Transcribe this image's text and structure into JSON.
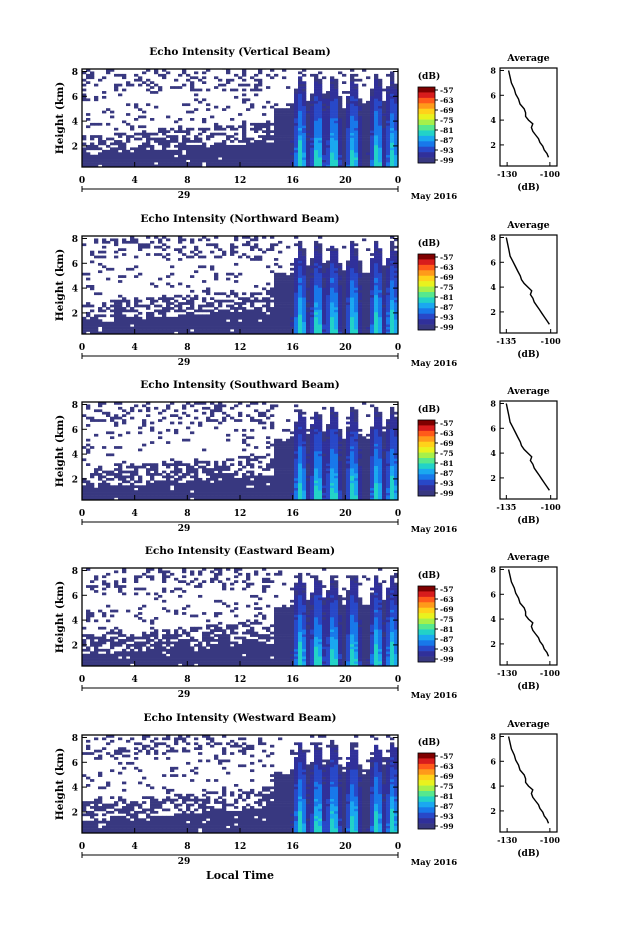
{
  "x_axis_title": "Local Time",
  "colorbar": {
    "unit": "(dB)",
    "labels": [
      "-57",
      "-63",
      "-69",
      "-75",
      "-81",
      "-87",
      "-93",
      "-99"
    ],
    "colors": [
      "#7f0000",
      "#d81c1c",
      "#ff5a1a",
      "#ff9a1a",
      "#ffd21a",
      "#e9f21e",
      "#a6f04a",
      "#56e88e",
      "#22d2c8",
      "#1aa8f0",
      "#1878ea",
      "#2848c8",
      "#30309a",
      "#383880"
    ]
  },
  "chart_data": [
    {
      "type": "heatmap",
      "title": "Echo Intensity (Vertical Beam)",
      "ylabel": "Height (km)",
      "yticks": [
        "2",
        "4",
        "6",
        "8"
      ],
      "ylim": [
        0.3,
        8.2
      ],
      "xticks": [
        "0",
        "4",
        "8",
        "12",
        "16",
        "20",
        "0"
      ],
      "xlim": [
        0,
        24
      ],
      "date_label": "29",
      "month_label": "May 2016",
      "profile": {
        "title": "Average",
        "xlabel": "(dB)",
        "xticks": [
          "-130",
          "-100"
        ],
        "xlim": [
          -135,
          -95
        ],
        "yticks": [
          "2",
          "4",
          "6",
          "8"
        ],
        "ylim": [
          0.3,
          8.2
        ],
        "dB": [
          -101,
          -102,
          -104,
          -105,
          -107,
          -108,
          -110,
          -112,
          -113,
          -112,
          -115,
          -117,
          -117,
          -118,
          -121,
          -122,
          -124,
          -125,
          -127,
          -128,
          -129
        ],
        "height_km": [
          1.0,
          1.3,
          1.6,
          1.9,
          2.2,
          2.5,
          2.8,
          3.1,
          3.4,
          3.7,
          4.0,
          4.3,
          4.6,
          4.9,
          5.3,
          5.7,
          6.1,
          6.5,
          7.0,
          7.5,
          8.0
        ]
      }
    },
    {
      "type": "heatmap",
      "title": "Echo Intensity (Northward Beam)",
      "ylabel": "Height (km)",
      "yticks": [
        "2",
        "4",
        "6",
        "8"
      ],
      "ylim": [
        0.3,
        8.2
      ],
      "xticks": [
        "0",
        "4",
        "8",
        "12",
        "16",
        "20",
        "0"
      ],
      "xlim": [
        0,
        24
      ],
      "date_label": "29",
      "month_label": "May 2016",
      "profile": {
        "title": "Average",
        "xlabel": "(dB)",
        "xticks": [
          "-135",
          "-100"
        ],
        "xlim": [
          -140,
          -95
        ],
        "yticks": [
          "2",
          "4",
          "6",
          "8"
        ],
        "ylim": [
          0.3,
          8.2
        ],
        "dB": [
          -101,
          -103,
          -105,
          -107,
          -109,
          -111,
          -113,
          -114,
          -116,
          -115,
          -118,
          -121,
          -123,
          -124,
          -126,
          -128,
          -130,
          -132,
          -133,
          -134,
          -135
        ],
        "height_km": [
          1.0,
          1.3,
          1.6,
          1.9,
          2.2,
          2.5,
          2.8,
          3.1,
          3.4,
          3.7,
          4.0,
          4.3,
          4.6,
          4.9,
          5.3,
          5.7,
          6.1,
          6.5,
          7.0,
          7.5,
          8.0
        ]
      }
    },
    {
      "type": "heatmap",
      "title": "Echo Intensity (Southward Beam)",
      "ylabel": "Height (km)",
      "yticks": [
        "2",
        "4",
        "6",
        "8"
      ],
      "ylim": [
        0.3,
        8.2
      ],
      "xticks": [
        "0",
        "4",
        "8",
        "12",
        "16",
        "20",
        "0"
      ],
      "xlim": [
        0,
        24
      ],
      "date_label": "29",
      "month_label": "May 2016",
      "profile": {
        "title": "Average",
        "xlabel": "(dB)",
        "xticks": [
          "-135",
          "-100"
        ],
        "xlim": [
          -140,
          -95
        ],
        "yticks": [
          "2",
          "4",
          "6",
          "8"
        ],
        "ylim": [
          0.3,
          8.2
        ],
        "dB": [
          -101,
          -103,
          -105,
          -107,
          -109,
          -111,
          -113,
          -114,
          -116,
          -115,
          -118,
          -121,
          -123,
          -124,
          -126,
          -128,
          -130,
          -132,
          -133,
          -134,
          -135
        ],
        "height_km": [
          1.0,
          1.3,
          1.6,
          1.9,
          2.2,
          2.5,
          2.8,
          3.1,
          3.4,
          3.7,
          4.0,
          4.3,
          4.6,
          4.9,
          5.3,
          5.7,
          6.1,
          6.5,
          7.0,
          7.5,
          8.0
        ]
      }
    },
    {
      "type": "heatmap",
      "title": "Echo Intensity (Eastward Beam)",
      "ylabel": "Height (km)",
      "yticks": [
        "2",
        "4",
        "6",
        "8"
      ],
      "ylim": [
        0.3,
        8.2
      ],
      "xticks": [
        "0",
        "4",
        "8",
        "12",
        "16",
        "20",
        "0"
      ],
      "xlim": [
        0,
        24
      ],
      "date_label": "29",
      "month_label": "May 2016",
      "profile": {
        "title": "Average",
        "xlabel": "(dB)",
        "xticks": [
          "-130",
          "-100"
        ],
        "xlim": [
          -135,
          -95
        ],
        "yticks": [
          "2",
          "4",
          "6",
          "8"
        ],
        "ylim": [
          0.3,
          8.2
        ],
        "dB": [
          -101,
          -102,
          -104,
          -105,
          -107,
          -108,
          -110,
          -112,
          -113,
          -112,
          -115,
          -117,
          -117,
          -118,
          -121,
          -122,
          -124,
          -125,
          -127,
          -128,
          -129
        ],
        "height_km": [
          1.0,
          1.3,
          1.6,
          1.9,
          2.2,
          2.5,
          2.8,
          3.1,
          3.4,
          3.7,
          4.0,
          4.3,
          4.6,
          4.9,
          5.3,
          5.7,
          6.1,
          6.5,
          7.0,
          7.5,
          8.0
        ]
      }
    },
    {
      "type": "heatmap",
      "title": "Echo Intensity (Westward Beam)",
      "ylabel": "Height (km)",
      "yticks": [
        "2",
        "4",
        "6",
        "8"
      ],
      "ylim": [
        0.3,
        8.2
      ],
      "xticks": [
        "0",
        "4",
        "8",
        "12",
        "16",
        "20",
        "0"
      ],
      "xlim": [
        0,
        24
      ],
      "date_label": "29",
      "month_label": "May 2016",
      "profile": {
        "title": "Average",
        "xlabel": "(dB)",
        "xticks": [
          "-130",
          "-100"
        ],
        "xlim": [
          -135,
          -95
        ],
        "yticks": [
          "2",
          "4",
          "6",
          "8"
        ],
        "ylim": [
          0.3,
          8.2
        ],
        "dB": [
          -101,
          -102,
          -104,
          -105,
          -107,
          -108,
          -110,
          -112,
          -113,
          -112,
          -115,
          -117,
          -117,
          -118,
          -121,
          -122,
          -124,
          -125,
          -127,
          -128,
          -129
        ],
        "height_km": [
          1.0,
          1.3,
          1.6,
          1.9,
          2.2,
          2.5,
          2.8,
          3.1,
          3.4,
          3.7,
          4.0,
          4.3,
          4.6,
          4.9,
          5.3,
          5.7,
          6.1,
          6.5,
          7.0,
          7.5,
          8.0
        ]
      }
    }
  ]
}
